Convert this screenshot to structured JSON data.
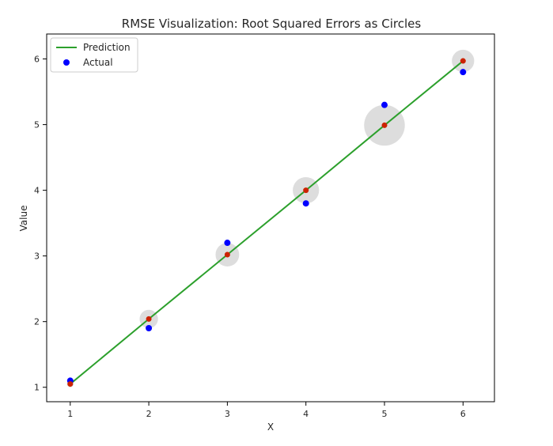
{
  "chart_data": {
    "type": "line",
    "title": "RMSE Visualization: Root Squared Errors as Circles",
    "xlabel": "X",
    "ylabel": "Value",
    "xlim": [
      0.7,
      6.4
    ],
    "ylim": [
      0.78,
      6.38
    ],
    "x_ticks": [
      1,
      2,
      3,
      4,
      5,
      6
    ],
    "y_ticks": [
      1,
      2,
      3,
      4,
      5,
      6
    ],
    "grid": false,
    "legend_position": "top-left",
    "x": [
      1,
      2,
      3,
      4,
      5,
      6
    ],
    "series": [
      {
        "name": "Prediction",
        "kind": "line",
        "color": "#2ca02c",
        "values": [
          1.05,
          2.04,
          3.02,
          4.0,
          4.99,
          5.97
        ]
      },
      {
        "name": "Actual",
        "kind": "scatter",
        "color": "#0000ff",
        "values": [
          1.1,
          1.9,
          3.2,
          3.8,
          5.3,
          5.8
        ]
      }
    ],
    "predicted_point_color": "#cc2200",
    "error_circle_color": "#d9d9d9",
    "error_circle_values": [
      0.05,
      0.14,
      0.18,
      0.2,
      0.31,
      0.17
    ]
  }
}
